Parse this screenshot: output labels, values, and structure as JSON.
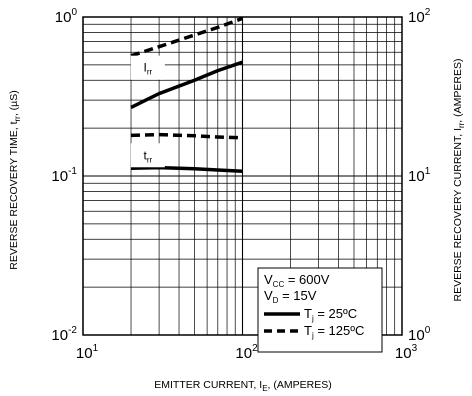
{
  "chart_data": {
    "type": "line",
    "xlabel": "EMITTER CURRENT, I",
    "xlabel_sub": "E",
    "xlabel_tail": ", (AMPERES)",
    "ylabel_left": "REVERSE RECOVERY TIME, t",
    "ylabel_left_sub": "rr",
    "ylabel_left_tail": ", (µS)",
    "ylabel_right": "REVERSE RECOVERY CURRENT, I",
    "ylabel_right_sub": "rr",
    "ylabel_right_tail": ", (AMPERES)",
    "x_scale": "log",
    "y_scale": "log",
    "xlim": [
      10,
      1000
    ],
    "ylim_left": [
      0.01,
      1
    ],
    "ylim_right": [
      1,
      100
    ],
    "grid": true,
    "x_ticks": [
      {
        "value": 10,
        "base": "10",
        "exp": "1"
      },
      {
        "value": 100,
        "base": "10",
        "exp": "2"
      },
      {
        "value": 1000,
        "base": "10",
        "exp": "3"
      }
    ],
    "y_ticks_left": [
      {
        "value": 1,
        "base": "10",
        "exp": "0"
      },
      {
        "value": 0.1,
        "base": "10",
        "exp": "-1"
      },
      {
        "value": 0.01,
        "base": "10",
        "exp": "-2"
      }
    ],
    "y_ticks_right": [
      {
        "value": 100,
        "base": "10",
        "exp": "2"
      },
      {
        "value": 10,
        "base": "10",
        "exp": "1"
      },
      {
        "value": 1,
        "base": "10",
        "exp": "0"
      }
    ],
    "annotations": [
      {
        "text": "I",
        "sub": "rr",
        "x": 25.5,
        "y": 0.48
      },
      {
        "text": "t",
        "sub": "rr",
        "x": 25.5,
        "y": 0.135
      }
    ],
    "series": [
      {
        "name": "T",
        "name_sub": "j",
        "name_tail": " = 25ºC",
        "style": "solid",
        "axis": "right",
        "x": [
          20,
          30,
          50,
          70,
          100
        ],
        "y": [
          27,
          33,
          40,
          46,
          52
        ]
      },
      {
        "name": "T",
        "name_sub": "j",
        "name_tail": " = 125ºC",
        "style": "dashed",
        "axis": "right",
        "x": [
          20,
          30,
          50,
          70,
          100
        ],
        "y": [
          57,
          65,
          77,
          86,
          98
        ]
      },
      {
        "name": "T",
        "name_sub": "j",
        "name_tail": " = 25ºC",
        "style": "solid",
        "axis": "left",
        "x": [
          20,
          30,
          50,
          70,
          100
        ],
        "y": [
          0.112,
          0.113,
          0.111,
          0.109,
          0.107
        ]
      },
      {
        "name": "T",
        "name_sub": "j",
        "name_tail": " = 125ºC",
        "style": "dashed",
        "axis": "left",
        "x": [
          20,
          30,
          50,
          70,
          100
        ],
        "y": [
          0.18,
          0.182,
          0.179,
          0.176,
          0.174
        ]
      }
    ],
    "legend": {
      "placement": "bottom-right",
      "header": [
        {
          "text": "V",
          "sub": "CC",
          "tail": " = 600V"
        },
        {
          "text": "V",
          "sub": "D",
          "tail": " = 15V"
        }
      ],
      "entries": [
        {
          "text": "T",
          "sub": "j",
          "tail": " = 25ºC",
          "style": "solid"
        },
        {
          "text": "T",
          "sub": "j",
          "tail": " = 125ºC",
          "style": "dashed"
        }
      ]
    }
  }
}
